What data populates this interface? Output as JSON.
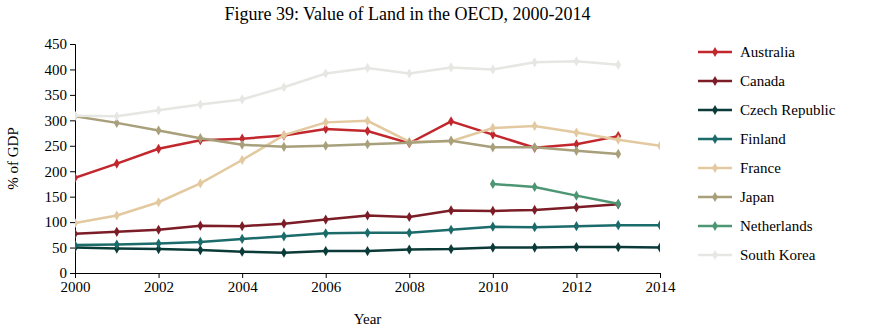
{
  "chart_data": {
    "type": "line",
    "title": "Figure 39: Value of Land in the OECD, 2000-2014",
    "x_label": "Year",
    "y_label": "% of GDP",
    "x": [
      2000,
      2001,
      2002,
      2003,
      2004,
      2005,
      2006,
      2007,
      2008,
      2009,
      2010,
      2011,
      2012,
      2013,
      2014
    ],
    "xlim": [
      2000,
      2014
    ],
    "xticks": [
      2000,
      2002,
      2004,
      2006,
      2008,
      2010,
      2012,
      2014
    ],
    "ylim": [
      0,
      450
    ],
    "yticks": [
      0,
      50,
      100,
      150,
      200,
      250,
      300,
      350,
      400,
      450
    ],
    "grid": false,
    "legend": "right",
    "marker": "diamond",
    "series": [
      {
        "name": "Australia",
        "color": "#c1272d",
        "values": [
          187,
          215,
          244,
          261,
          264,
          270,
          283,
          279,
          255,
          298,
          272,
          246,
          253,
          269,
          null
        ]
      },
      {
        "name": "Canada",
        "color": "#7b1c26",
        "values": [
          77,
          81,
          85,
          93,
          92,
          97,
          105,
          113,
          110,
          123,
          122,
          124,
          129,
          135,
          null
        ]
      },
      {
        "name": "Czech Republic",
        "color": "#0b3b38",
        "values": [
          50,
          48,
          47,
          45,
          42,
          40,
          43,
          43,
          46,
          47,
          50,
          50,
          51,
          51,
          50
        ]
      },
      {
        "name": "Finland",
        "color": "#1b6b6a",
        "values": [
          55,
          56,
          58,
          61,
          67,
          72,
          78,
          79,
          79,
          85,
          91,
          90,
          92,
          94,
          94
        ]
      },
      {
        "name": "France",
        "color": "#e3c9a0",
        "values": [
          98,
          113,
          139,
          176,
          222,
          271,
          296,
          299,
          258,
          259,
          285,
          289,
          276,
          262,
          250
        ]
      },
      {
        "name": "Japan",
        "color": "#a89f7b",
        "values": [
          308,
          295,
          280,
          265,
          252,
          248,
          250,
          253,
          256,
          260,
          247,
          247,
          240,
          234,
          null
        ]
      },
      {
        "name": "Netherlands",
        "color": "#4d9673",
        "values": [
          null,
          null,
          null,
          null,
          null,
          null,
          null,
          null,
          null,
          null,
          175,
          169,
          152,
          136,
          null
        ]
      },
      {
        "name": "South Korea",
        "color": "#e6e6e2",
        "values": [
          309,
          308,
          320,
          331,
          341,
          365,
          392,
          403,
          392,
          404,
          400,
          414,
          416,
          409,
          null
        ]
      }
    ]
  }
}
